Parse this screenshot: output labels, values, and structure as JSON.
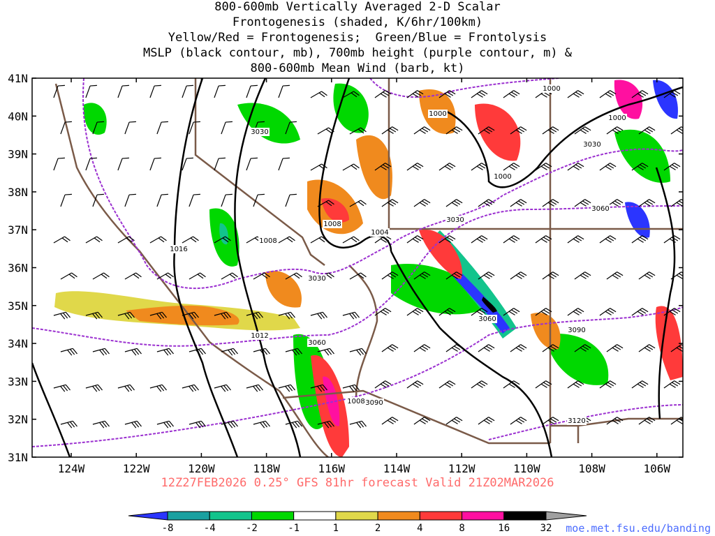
{
  "title": {
    "lines": [
      "800-600mb Vertically Averaged 2-D Scalar",
      "Frontogenesis (shaded, K/6hr/100km)",
      "Yellow/Red = Frontogenesis;  Green/Blue = Frontolysis",
      "MSLP (black contour, mb), 700mb height (purple contour, m) &",
      "800-600mb Mean Wind (barb, kt)"
    ]
  },
  "axes": {
    "lat_labels": [
      "41N",
      "40N",
      "39N",
      "38N",
      "37N",
      "36N",
      "35N",
      "34N",
      "33N",
      "32N",
      "31N"
    ],
    "lon_labels": [
      "124W",
      "122W",
      "120W",
      "118W",
      "116W",
      "114W",
      "112W",
      "110W",
      "108W",
      "106W"
    ]
  },
  "contour_labels": {
    "mslp": [
      "1000",
      "1000",
      "1000",
      "1000",
      "1008",
      "1008",
      "1012",
      "1016",
      "1004",
      "1008"
    ],
    "height": [
      "3030",
      "3030",
      "3030",
      "3030",
      "3060",
      "3060",
      "3060",
      "3090",
      "3090",
      "3120"
    ]
  },
  "colorbar": {
    "labels": [
      "-8",
      "-4",
      "-2",
      "-1",
      "1",
      "2",
      "4",
      "8",
      "16",
      "32"
    ],
    "colors": [
      "#2b35ff",
      "#1aa0a0",
      "#12c48c",
      "#00d800",
      "#ffffff",
      "#e0d84a",
      "#f08a1e",
      "#ff3a3a",
      "#ff10a0",
      "#000000",
      "#a0a0a0"
    ]
  },
  "footer": {
    "forecast": "12Z27FEB2026 0.25° GFS 81hr forecast Valid 21Z02MAR2026",
    "credit": "moe.met.fsu.edu/banding"
  },
  "colors": {
    "state_borders": "#7a5a48",
    "mslp_contour": "#000000",
    "height_contour": "#9b30d0",
    "frontogenesis_yellow": "#e0d84a",
    "frontogenesis_orange": "#f08a1e",
    "frontogenesis_red": "#ff3a3a",
    "frontogenesis_magenta": "#ff10a0",
    "frontolysis_green": "#00d800",
    "frontolysis_teal": "#12c48c",
    "frontolysis_blue": "#2b35ff"
  }
}
